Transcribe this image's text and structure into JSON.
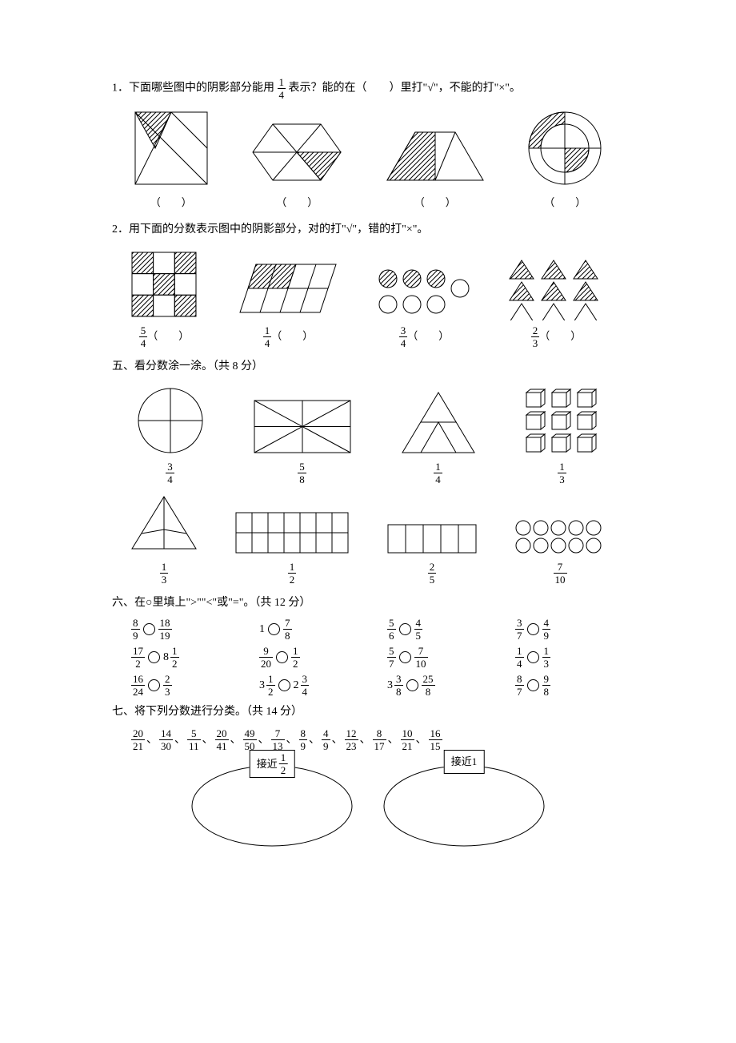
{
  "q1": {
    "prefix": "1．下面哪些图中的阴影部分能用",
    "frac": {
      "n": "1",
      "d": "4"
    },
    "suffix": "表示？能的在（　　）里打\"√\"，不能的打\"×\"。",
    "blank": "（　　）"
  },
  "q2": {
    "text": "2．用下面的分数表示图中的阴影部分，对的打\"√\"，错的打\"×\"。",
    "labels": [
      {
        "n": "5",
        "d": "4"
      },
      {
        "n": "1",
        "d": "4"
      },
      {
        "n": "3",
        "d": "4"
      },
      {
        "n": "2",
        "d": "3"
      }
    ],
    "blank": "（　　）"
  },
  "q5": {
    "title": "五、看分数涂一涂。（共 8 分）",
    "row1": [
      {
        "n": "3",
        "d": "4"
      },
      {
        "n": "5",
        "d": "8"
      },
      {
        "n": "1",
        "d": "4"
      },
      {
        "n": "1",
        "d": "3"
      }
    ],
    "row2": [
      {
        "n": "1",
        "d": "3"
      },
      {
        "n": "1",
        "d": "2"
      },
      {
        "n": "2",
        "d": "5"
      },
      {
        "n": "7",
        "d": "10"
      }
    ]
  },
  "q6": {
    "title": "六、在○里填上\">\"\"<\"或\"=\"。（共 12 分）",
    "items": [
      {
        "l": {
          "n": "8",
          "d": "9"
        },
        "r": {
          "n": "18",
          "d": "19"
        }
      },
      {
        "l_whole": "1",
        "r": {
          "n": "7",
          "d": "8"
        }
      },
      {
        "l": {
          "n": "5",
          "d": "6"
        },
        "r": {
          "n": "4",
          "d": "5"
        }
      },
      {
        "l": {
          "n": "3",
          "d": "7"
        },
        "r": {
          "n": "4",
          "d": "9"
        }
      },
      {
        "l": {
          "n": "17",
          "d": "2"
        },
        "r_whole": "8",
        "r": {
          "n": "1",
          "d": "2"
        }
      },
      {
        "l": {
          "n": "9",
          "d": "20"
        },
        "r": {
          "n": "1",
          "d": "2"
        }
      },
      {
        "l": {
          "n": "5",
          "d": "7"
        },
        "r": {
          "n": "7",
          "d": "10"
        }
      },
      {
        "l": {
          "n": "1",
          "d": "4"
        },
        "r": {
          "n": "1",
          "d": "3"
        }
      },
      {
        "l": {
          "n": "16",
          "d": "24"
        },
        "r": {
          "n": "2",
          "d": "3"
        }
      },
      {
        "l_whole": "3",
        "l": {
          "n": "1",
          "d": "2"
        },
        "r_whole": "2",
        "r": {
          "n": "3",
          "d": "4"
        }
      },
      {
        "l_whole": "3",
        "l": {
          "n": "3",
          "d": "8"
        },
        "r": {
          "n": "25",
          "d": "8"
        }
      },
      {
        "l": {
          "n": "8",
          "d": "7"
        },
        "r": {
          "n": "9",
          "d": "8"
        }
      }
    ]
  },
  "q7": {
    "title": "七、将下列分数进行分类。（共 14 分）",
    "fracs": [
      {
        "n": "20",
        "d": "21"
      },
      {
        "n": "14",
        "d": "30"
      },
      {
        "n": "5",
        "d": "11"
      },
      {
        "n": "20",
        "d": "41"
      },
      {
        "n": "49",
        "d": "50"
      },
      {
        "n": "7",
        "d": "13"
      },
      {
        "n": "8",
        "d": "9"
      },
      {
        "n": "4",
        "d": "9"
      },
      {
        "n": "12",
        "d": "23"
      },
      {
        "n": "8",
        "d": "17"
      },
      {
        "n": "10",
        "d": "21"
      },
      {
        "n": "16",
        "d": "15"
      }
    ],
    "label_half_prefix": "接近",
    "label_half_frac": {
      "n": "1",
      "d": "2"
    },
    "label_one": "接近1"
  },
  "svg": {
    "stroke": "#000000",
    "fill_hatch": "url(#hatch)",
    "stroke_width": 1
  }
}
